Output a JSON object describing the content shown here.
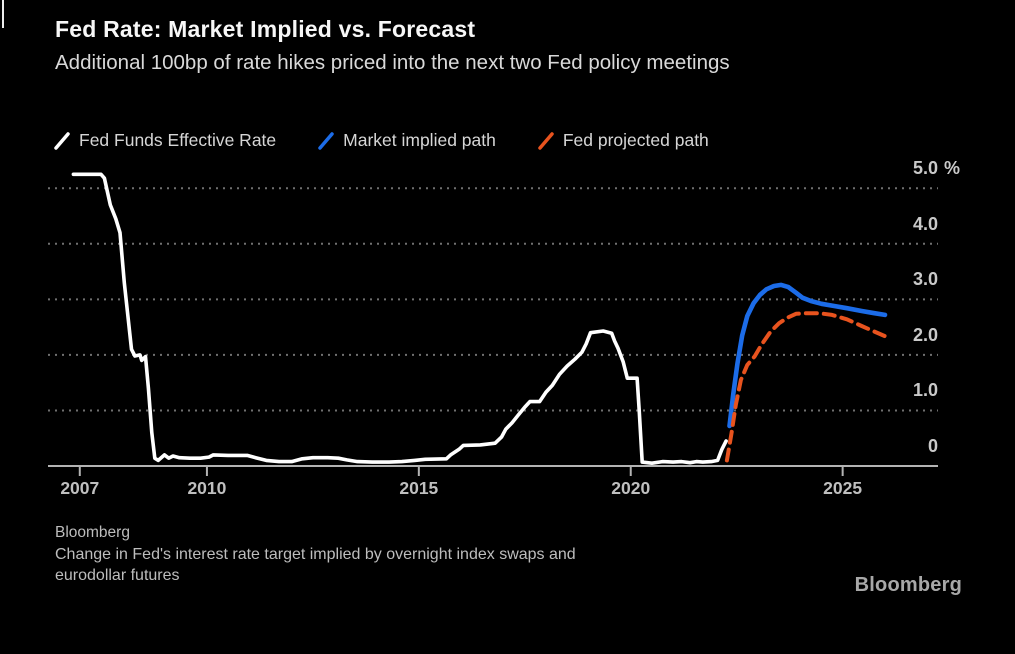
{
  "header": {
    "title": "Fed Rate: Market Implied vs. Forecast",
    "subtitle": "Additional 100bp of rate hikes priced into the next two Fed policy meetings"
  },
  "footer": {
    "source": "Bloomberg",
    "note_lines": [
      "Change in Fed's interest rate target implied by overnight index swaps and",
      "eurodollar futures"
    ],
    "logo": "Bloomberg"
  },
  "chart_data": {
    "type": "line",
    "title": "Fed Rate: Market Implied vs. Forecast",
    "subtitle": "Additional 100bp of rate hikes priced into the next two Fed policy meetings",
    "xlabel": "",
    "ylabel": "%",
    "xlim": [
      2006.25,
      2027.25
    ],
    "ylim": [
      0,
      5.4
    ],
    "grid": "horizontal-dotted",
    "legend_position": "top",
    "colors": {
      "axis": "#b3b3b3",
      "gridline": "#707070",
      "background": "#000000"
    },
    "x_axis": {
      "ticks": [
        {
          "value": 2007,
          "label": "2007"
        },
        {
          "value": 2010,
          "label": "2010"
        },
        {
          "value": 2015,
          "label": "2015"
        },
        {
          "value": 2020,
          "label": "2020"
        },
        {
          "value": 2025,
          "label": "2025"
        }
      ]
    },
    "y_axis": {
      "suffix": "%",
      "ticks": [
        {
          "value": 5,
          "label": "5.0"
        },
        {
          "value": 4,
          "label": "4.0"
        },
        {
          "value": 3,
          "label": "3.0"
        },
        {
          "value": 2,
          "label": "2.0"
        },
        {
          "value": 1,
          "label": "1.0"
        },
        {
          "value": 0,
          "label": "0"
        }
      ]
    },
    "series": [
      {
        "name": "Fed Funds Effective Rate",
        "color": "#ffffff",
        "style": "solid",
        "points": [
          [
            2006.85,
            5.25
          ],
          [
            2007.5,
            5.25
          ],
          [
            2007.58,
            5.18
          ],
          [
            2007.72,
            4.7
          ],
          [
            2007.85,
            4.45
          ],
          [
            2007.95,
            4.2
          ],
          [
            2008.05,
            3.3
          ],
          [
            2008.15,
            2.6
          ],
          [
            2008.22,
            2.1
          ],
          [
            2008.3,
            1.98
          ],
          [
            2008.42,
            2.0
          ],
          [
            2008.46,
            1.9
          ],
          [
            2008.55,
            1.97
          ],
          [
            2008.62,
            1.4
          ],
          [
            2008.7,
            0.6
          ],
          [
            2008.77,
            0.14
          ],
          [
            2008.85,
            0.1
          ],
          [
            2009.0,
            0.2
          ],
          [
            2009.1,
            0.14
          ],
          [
            2009.2,
            0.18
          ],
          [
            2009.35,
            0.15
          ],
          [
            2009.6,
            0.14
          ],
          [
            2009.85,
            0.14
          ],
          [
            2010.05,
            0.16
          ],
          [
            2010.15,
            0.2
          ],
          [
            2010.5,
            0.19
          ],
          [
            2010.95,
            0.19
          ],
          [
            2011.15,
            0.15
          ],
          [
            2011.4,
            0.1
          ],
          [
            2011.7,
            0.08
          ],
          [
            2012.0,
            0.08
          ],
          [
            2012.25,
            0.13
          ],
          [
            2012.5,
            0.15
          ],
          [
            2012.85,
            0.15
          ],
          [
            2013.1,
            0.14
          ],
          [
            2013.3,
            0.11
          ],
          [
            2013.55,
            0.08
          ],
          [
            2013.9,
            0.07
          ],
          [
            2014.3,
            0.07
          ],
          [
            2014.6,
            0.08
          ],
          [
            2014.9,
            0.1
          ],
          [
            2015.15,
            0.12
          ],
          [
            2015.65,
            0.13
          ],
          [
            2015.75,
            0.2
          ],
          [
            2015.95,
            0.3
          ],
          [
            2016.05,
            0.37
          ],
          [
            2016.45,
            0.38
          ],
          [
            2016.8,
            0.41
          ],
          [
            2016.95,
            0.52
          ],
          [
            2017.05,
            0.66
          ],
          [
            2017.2,
            0.78
          ],
          [
            2017.35,
            0.92
          ],
          [
            2017.5,
            1.06
          ],
          [
            2017.62,
            1.16
          ],
          [
            2017.85,
            1.16
          ],
          [
            2018.0,
            1.33
          ],
          [
            2018.15,
            1.45
          ],
          [
            2018.32,
            1.65
          ],
          [
            2018.5,
            1.8
          ],
          [
            2018.68,
            1.92
          ],
          [
            2018.85,
            2.05
          ],
          [
            2018.95,
            2.2
          ],
          [
            2019.05,
            2.4
          ],
          [
            2019.35,
            2.43
          ],
          [
            2019.55,
            2.39
          ],
          [
            2019.62,
            2.25
          ],
          [
            2019.7,
            2.12
          ],
          [
            2019.82,
            1.88
          ],
          [
            2019.92,
            1.58
          ],
          [
            2020.15,
            1.58
          ],
          [
            2020.2,
            1.0
          ],
          [
            2020.27,
            0.07
          ],
          [
            2020.5,
            0.05
          ],
          [
            2020.75,
            0.08
          ],
          [
            2021.0,
            0.07
          ],
          [
            2021.2,
            0.08
          ],
          [
            2021.4,
            0.06
          ],
          [
            2021.55,
            0.08
          ],
          [
            2021.7,
            0.07
          ],
          [
            2021.9,
            0.08
          ],
          [
            2022.05,
            0.1
          ],
          [
            2022.15,
            0.3
          ],
          [
            2022.25,
            0.45
          ]
        ]
      },
      {
        "name": "Market implied path",
        "color": "#1c6ce8",
        "style": "solid",
        "points": [
          [
            2022.33,
            0.72
          ],
          [
            2022.42,
            1.3
          ],
          [
            2022.52,
            1.85
          ],
          [
            2022.63,
            2.35
          ],
          [
            2022.75,
            2.7
          ],
          [
            2022.9,
            2.93
          ],
          [
            2023.05,
            3.08
          ],
          [
            2023.2,
            3.18
          ],
          [
            2023.38,
            3.24
          ],
          [
            2023.55,
            3.26
          ],
          [
            2023.72,
            3.22
          ],
          [
            2023.9,
            3.12
          ],
          [
            2024.05,
            3.03
          ],
          [
            2024.25,
            2.97
          ],
          [
            2024.5,
            2.92
          ],
          [
            2024.8,
            2.88
          ],
          [
            2025.1,
            2.84
          ],
          [
            2025.45,
            2.79
          ],
          [
            2025.75,
            2.75
          ],
          [
            2026.0,
            2.72
          ]
        ]
      },
      {
        "name": "Fed projected path",
        "color": "#e8531e",
        "style": "dashed",
        "points": [
          [
            2022.27,
            0.1
          ],
          [
            2022.38,
            0.6
          ],
          [
            2022.48,
            1.1
          ],
          [
            2022.6,
            1.55
          ],
          [
            2022.75,
            1.82
          ],
          [
            2022.92,
            1.97
          ],
          [
            2023.1,
            2.2
          ],
          [
            2023.3,
            2.42
          ],
          [
            2023.5,
            2.57
          ],
          [
            2023.7,
            2.67
          ],
          [
            2023.9,
            2.74
          ],
          [
            2024.15,
            2.75
          ],
          [
            2024.45,
            2.75
          ],
          [
            2024.75,
            2.72
          ],
          [
            2025.1,
            2.64
          ],
          [
            2025.45,
            2.52
          ],
          [
            2025.75,
            2.42
          ],
          [
            2026.05,
            2.32
          ]
        ]
      }
    ]
  }
}
